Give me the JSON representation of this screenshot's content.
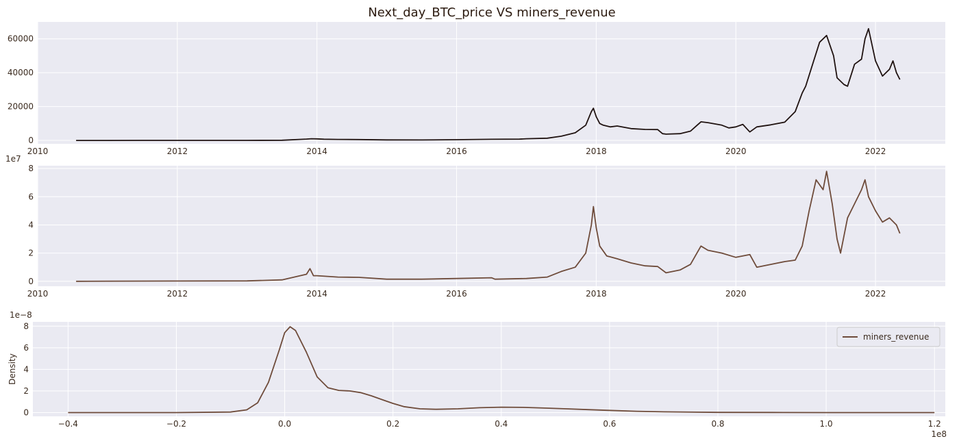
{
  "title": "Next_day_BTC_price VS miners_revenue",
  "colors": {
    "price_line": "#1f1210",
    "revenue_line": "#6e4b3a",
    "panel_bg": "#eaeaf2",
    "text": "#3a2a1e"
  },
  "chart_data": [
    {
      "type": "line",
      "title": "Next_day_BTC_price VS miners_revenue",
      "xlabel": "",
      "ylabel": "",
      "xlim": [
        2010.0,
        2023.0
      ],
      "ylim": [
        -2000,
        70000
      ],
      "xticks": [
        2010,
        2012,
        2014,
        2016,
        2018,
        2020,
        2022
      ],
      "xticklabels": [
        "2010",
        "2012",
        "2014",
        "2016",
        "2018",
        "2020",
        "2022"
      ],
      "yticks": [
        0,
        20000,
        40000,
        60000
      ],
      "yticklabels": [
        "0",
        "20000",
        "40000",
        "60000"
      ],
      "grid": true,
      "series": [
        {
          "x": [
            2010.55,
            2011.0,
            2011.5,
            2012.0,
            2012.5,
            2013.0,
            2013.5,
            2013.85,
            2013.92,
            2014.0,
            2014.1,
            2014.3,
            2014.6,
            2015.0,
            2015.5,
            2016.0,
            2016.5,
            2016.9,
            2017.0,
            2017.3,
            2017.5,
            2017.7,
            2017.85,
            2017.93,
            2017.96,
            2018.0,
            2018.05,
            2018.1,
            2018.2,
            2018.3,
            2018.5,
            2018.7,
            2018.88,
            2018.95,
            2019.0,
            2019.2,
            2019.35,
            2019.5,
            2019.6,
            2019.8,
            2019.9,
            2020.0,
            2020.1,
            2020.2,
            2020.3,
            2020.5,
            2020.7,
            2020.85,
            2020.95,
            2021.0,
            2021.1,
            2021.2,
            2021.3,
            2021.4,
            2021.45,
            2021.55,
            2021.6,
            2021.7,
            2021.8,
            2021.85,
            2021.9,
            2022.0,
            2022.1,
            2022.2,
            2022.25,
            2022.3,
            2022.35
          ],
          "y": [
            0,
            1,
            5,
            5,
            8,
            15,
            100,
            800,
            1000,
            900,
            700,
            600,
            500,
            300,
            250,
            430,
            650,
            750,
            1000,
            1300,
            2500,
            4500,
            9000,
            17000,
            19000,
            14000,
            10000,
            9000,
            8000,
            8500,
            7000,
            6500,
            6400,
            4000,
            3700,
            4000,
            5500,
            11000,
            10500,
            9000,
            7400,
            8000,
            9500,
            5000,
            8000,
            9200,
            10800,
            17000,
            28000,
            32000,
            45000,
            58000,
            62000,
            50000,
            37000,
            33000,
            32000,
            45000,
            48000,
            60000,
            66000,
            47000,
            38000,
            42000,
            47000,
            40000,
            36000
          ]
        }
      ]
    },
    {
      "type": "line",
      "xlabel": "",
      "ylabel": "",
      "xlim": [
        2010.0,
        2023.0
      ],
      "ylim": [
        -3500000,
        82000000
      ],
      "y_offset_label": "1e7",
      "xticks": [
        2010,
        2012,
        2014,
        2016,
        2018,
        2020,
        2022
      ],
      "xticklabels": [
        "2010",
        "2012",
        "2014",
        "2016",
        "2018",
        "2020",
        "2022"
      ],
      "yticks": [
        0,
        20000000,
        40000000,
        60000000,
        80000000
      ],
      "yticklabels": [
        "0",
        "2",
        "4",
        "6",
        "8"
      ],
      "grid": true,
      "series": [
        {
          "name": "miners_revenue",
          "x": [
            2010.55,
            2011.0,
            2012.0,
            2013.0,
            2013.5,
            2013.85,
            2013.9,
            2013.95,
            2014.0,
            2014.3,
            2014.6,
            2015.0,
            2015.5,
            2016.0,
            2016.5,
            2016.55,
            2017.0,
            2017.3,
            2017.5,
            2017.7,
            2017.85,
            2017.93,
            2017.96,
            2018.0,
            2018.05,
            2018.15,
            2018.3,
            2018.5,
            2018.7,
            2018.88,
            2019.0,
            2019.2,
            2019.35,
            2019.5,
            2019.6,
            2019.8,
            2020.0,
            2020.2,
            2020.3,
            2020.5,
            2020.7,
            2020.85,
            2020.95,
            2021.05,
            2021.15,
            2021.25,
            2021.3,
            2021.38,
            2021.45,
            2021.5,
            2021.6,
            2021.7,
            2021.8,
            2021.85,
            2021.9,
            2022.0,
            2022.1,
            2022.2,
            2022.3,
            2022.35
          ],
          "y": [
            0,
            100000,
            200000,
            300000,
            1000000,
            5000000,
            9000000,
            4000000,
            4000000,
            3000000,
            2800000,
            1500000,
            1500000,
            2000000,
            2500000,
            1500000,
            2000000,
            3000000,
            7000000,
            10000000,
            20000000,
            40000000,
            53000000,
            38000000,
            25000000,
            18000000,
            16000000,
            13000000,
            11000000,
            10500000,
            6000000,
            8000000,
            12000000,
            25000000,
            22000000,
            20000000,
            17000000,
            19000000,
            10000000,
            12000000,
            14000000,
            15000000,
            25000000,
            50000000,
            72000000,
            65000000,
            78000000,
            55000000,
            30000000,
            20000000,
            45000000,
            55000000,
            65000000,
            72000000,
            60000000,
            50000000,
            42000000,
            45000000,
            40000000,
            34000000
          ]
        }
      ]
    },
    {
      "type": "line",
      "xlabel": "",
      "ylabel": "Density",
      "xlim": [
        -0.465,
        1.22
      ],
      "ylim": [
        -0.35,
        8.4
      ],
      "x_offset_label": "1e8",
      "y_offset_label": "1e−8",
      "xticks": [
        -0.4,
        -0.2,
        0.0,
        0.2,
        0.4,
        0.6,
        0.8,
        1.0,
        1.2
      ],
      "xticklabels": [
        "−0.4",
        "−0.2",
        "0.0",
        "0.2",
        "0.4",
        "0.6",
        "0.8",
        "1.0",
        "1.2"
      ],
      "yticks": [
        0,
        2,
        4,
        6,
        8
      ],
      "yticklabels": [
        "0",
        "2",
        "4",
        "6",
        "8"
      ],
      "grid": true,
      "legend": {
        "position": "top-right"
      },
      "series": [
        {
          "name": "miners_revenue",
          "x": [
            -0.4,
            -0.2,
            -0.1,
            -0.07,
            -0.05,
            -0.03,
            -0.01,
            0.0,
            0.01,
            0.02,
            0.04,
            0.06,
            0.08,
            0.1,
            0.12,
            0.14,
            0.16,
            0.18,
            0.2,
            0.22,
            0.25,
            0.28,
            0.32,
            0.36,
            0.4,
            0.44,
            0.48,
            0.52,
            0.56,
            0.6,
            0.65,
            0.7,
            0.8,
            0.9,
            1.0,
            1.2
          ],
          "y": [
            0,
            0,
            0.05,
            0.25,
            0.9,
            2.8,
            5.8,
            7.4,
            7.95,
            7.6,
            5.6,
            3.3,
            2.3,
            2.05,
            2.0,
            1.85,
            1.55,
            1.2,
            0.85,
            0.55,
            0.35,
            0.3,
            0.35,
            0.45,
            0.5,
            0.48,
            0.42,
            0.35,
            0.27,
            0.2,
            0.12,
            0.07,
            0.02,
            0.01,
            0,
            0
          ]
        }
      ]
    }
  ]
}
